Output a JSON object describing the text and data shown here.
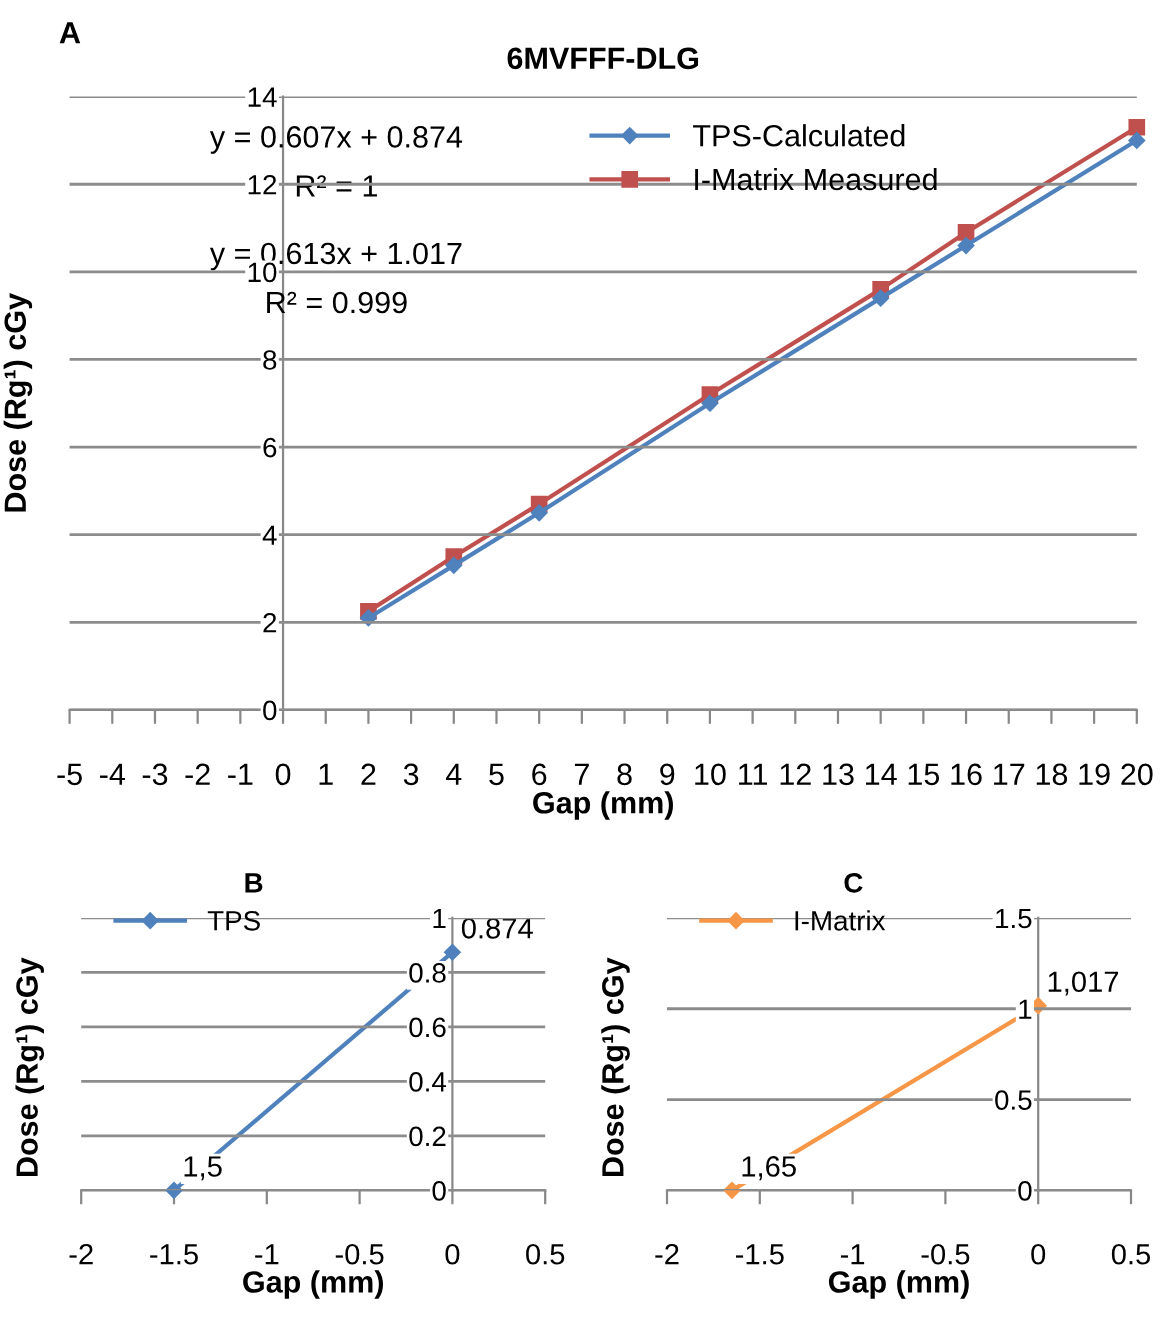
{
  "chart_data": [
    {
      "type": "line",
      "title": "6MVFFF-DLG",
      "xlabel": "Gap (mm)",
      "ylabel": "Dose (Rg¹) cGy",
      "annotations": [
        "A",
        "y = 0.607x + 0.874",
        "R² = 1",
        "y = 0.613x + 1.017",
        "R² = 0.999"
      ],
      "x": [
        2,
        4,
        6,
        10,
        14,
        16,
        20
      ],
      "series": [
        {
          "name": "TPS-Calculated",
          "color": "#4f81bd",
          "marker": "diamond",
          "values": [
            2.1,
            3.3,
            4.5,
            7.0,
            9.4,
            10.6,
            13.0
          ]
        },
        {
          "name": "I-Matrix Measured",
          "color": "#c0504d",
          "marker": "square",
          "values": [
            2.25,
            3.5,
            4.7,
            7.2,
            9.6,
            10.9,
            13.3
          ]
        }
      ],
      "xlim": [
        -5,
        20
      ],
      "xticks": [
        -5,
        -4,
        -3,
        -2,
        -1,
        0,
        1,
        2,
        3,
        4,
        5,
        6,
        7,
        8,
        9,
        10,
        11,
        12,
        13,
        14,
        15,
        16,
        17,
        18,
        19,
        20
      ],
      "ylim": [
        0,
        14
      ],
      "yticks": [
        0,
        2,
        4,
        6,
        8,
        10,
        12,
        14
      ],
      "grid": "y",
      "legend": "top right"
    },
    {
      "type": "line",
      "xlabel": "Gap (mm)",
      "ylabel": "Dose (Rg¹) cGy",
      "annotations": [
        "B",
        {
          "text": "1,5",
          "x": -1.5,
          "y": 0
        },
        {
          "text": "0.874",
          "x": 0,
          "y": 0.874
        }
      ],
      "x": [
        -1.5,
        0
      ],
      "series": [
        {
          "name": "TPS",
          "color": "#4f81bd",
          "marker": "diamond",
          "values": [
            0,
            0.874
          ]
        }
      ],
      "xlim": [
        -2,
        0.5
      ],
      "xticks": [
        -2,
        -1.5,
        -1,
        -0.5,
        0,
        0.5
      ],
      "ylim": [
        0,
        1
      ],
      "yticks": [
        0,
        0.2,
        0.4,
        0.6,
        0.8,
        1
      ],
      "grid": "y",
      "legend": "top left"
    },
    {
      "type": "line",
      "xlabel": "Gap (mm)",
      "ylabel": "Dose (Rg¹) cGy",
      "annotations": [
        "C",
        {
          "text": "1,65",
          "x": -1.65,
          "y": 0
        },
        {
          "text": "1,017",
          "x": 0,
          "y": 1.017
        }
      ],
      "x": [
        -1.65,
        0
      ],
      "series": [
        {
          "name": "I-Matrix",
          "color": "#f79646",
          "marker": "diamond",
          "values": [
            0,
            1.017
          ]
        }
      ],
      "xlim": [
        -2,
        0.5
      ],
      "xticks": [
        -2,
        -1.5,
        -1,
        -0.5,
        0,
        0.5
      ],
      "ylim": [
        0,
        1.5
      ],
      "yticks": [
        0,
        0.5,
        1,
        1.5
      ],
      "grid": "y",
      "legend": "top left"
    }
  ]
}
